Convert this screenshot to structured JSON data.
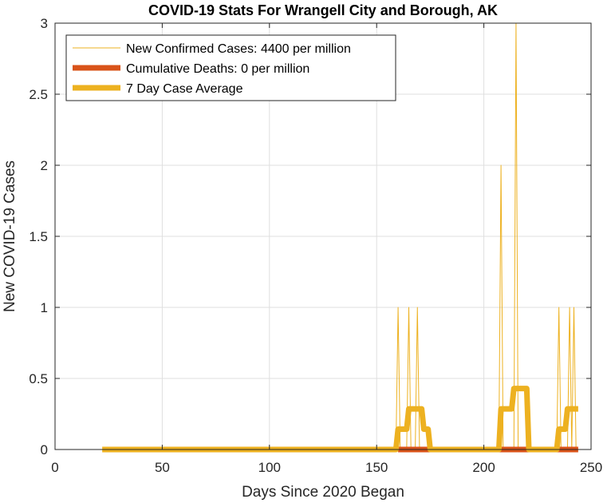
{
  "chart_data": {
    "type": "line",
    "title": "COVID-19 Stats For Wrangell City and Borough, AK",
    "xlabel": "Days Since 2020 Began",
    "ylabel": "New COVID-19 Cases",
    "xlim": [
      0,
      250
    ],
    "ylim": [
      0,
      3
    ],
    "xticks": [
      0,
      50,
      100,
      150,
      200,
      250
    ],
    "yticks": [
      0,
      0.5,
      1,
      1.5,
      2,
      2.5,
      3
    ],
    "xtick_labels": [
      "0",
      "50",
      "100",
      "150",
      "200",
      "250"
    ],
    "ytick_labels": [
      "0",
      "0.5",
      "1",
      "1.5",
      "2",
      "2.5",
      "3"
    ],
    "grid": true,
    "legend_position": "top-left",
    "series": [
      {
        "name": "New Confirmed Cases: 4400 per million",
        "color": "#EDB120",
        "x": [
          22,
          159,
          160,
          161,
          164,
          165,
          166,
          168,
          169,
          170,
          207,
          208,
          209,
          214,
          215,
          216,
          234,
          235,
          236,
          239,
          240,
          241,
          242,
          243,
          244
        ],
        "y": [
          0,
          0,
          1,
          0,
          0,
          1,
          0,
          0,
          1,
          0,
          0,
          2,
          0,
          0,
          3,
          0,
          0,
          1,
          0,
          0,
          1,
          0,
          1,
          0,
          0
        ]
      },
      {
        "name": "Cumulative Deaths: 0 per million",
        "color": "#D95319",
        "x": [
          160,
          244
        ],
        "y": [
          0,
          0
        ]
      },
      {
        "name": "7 Day Case Average",
        "color": "#EDB120",
        "x": [
          22,
          159,
          160,
          164,
          165,
          167,
          168,
          171,
          172,
          174,
          175,
          207,
          208,
          213,
          214,
          220,
          221,
          234,
          235,
          238,
          239,
          244
        ],
        "y": [
          0,
          0,
          0.143,
          0.143,
          0.286,
          0.286,
          0.286,
          0.286,
          0.143,
          0.143,
          0,
          0,
          0.286,
          0.286,
          0.429,
          0.429,
          0,
          0,
          0.143,
          0.143,
          0.286,
          0.286
        ]
      }
    ]
  }
}
